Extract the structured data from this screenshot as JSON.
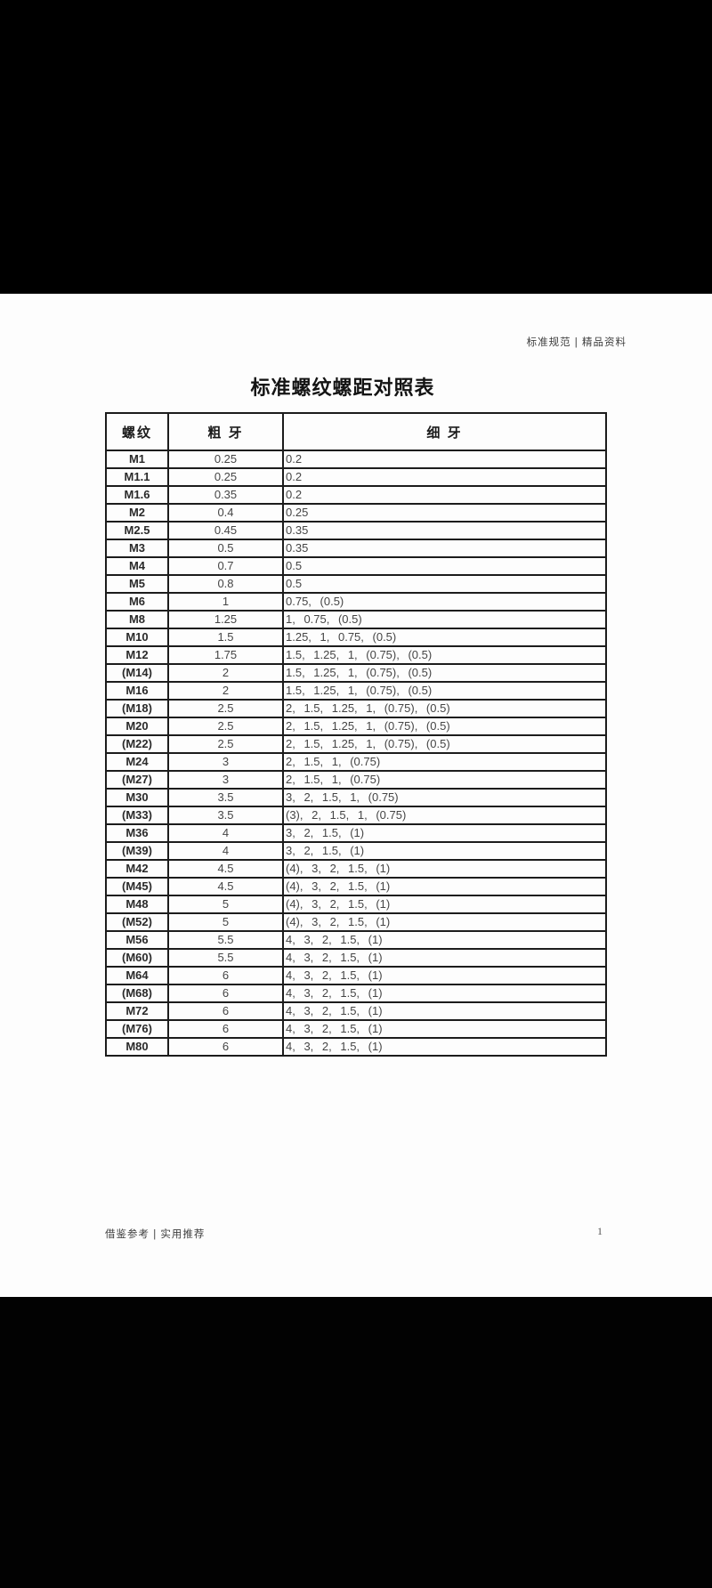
{
  "page": {
    "header_meta": "标准规范 | 精品资料",
    "title": "标准螺纹螺距对照表",
    "footer_meta": "借鉴参考 | 实用推荐",
    "page_number": "1"
  },
  "colors": {
    "background": "#000000",
    "paper": "#fdfdfd",
    "border": "#1c1c1c",
    "text": "#454545"
  },
  "table": {
    "columns": [
      "螺纹",
      "粗 牙",
      "细 牙"
    ],
    "rows": [
      [
        "M1",
        "0.25",
        "0.2"
      ],
      [
        "M1.1",
        "0.25",
        "0.2"
      ],
      [
        "M1.6",
        "0.35",
        "0.2"
      ],
      [
        "M2",
        "0.4",
        "0.25"
      ],
      [
        "M2.5",
        "0.45",
        "0.35"
      ],
      [
        "M3",
        "0.5",
        "0.35"
      ],
      [
        "M4",
        "0.7",
        "0.5"
      ],
      [
        "M5",
        "0.8",
        "0.5"
      ],
      [
        "M6",
        "1",
        "0.75, (0.5)"
      ],
      [
        "M8",
        "1.25",
        "1, 0.75, (0.5)"
      ],
      [
        "M10",
        "1.5",
        "1.25, 1, 0.75, (0.5)"
      ],
      [
        "M12",
        "1.75",
        "1.5, 1.25, 1, (0.75), (0.5)"
      ],
      [
        "(M14)",
        "2",
        "1.5, 1.25, 1, (0.75), (0.5)"
      ],
      [
        "M16",
        "2",
        "1.5, 1.25, 1, (0.75), (0.5)"
      ],
      [
        "(M18)",
        "2.5",
        "2, 1.5, 1.25, 1, (0.75), (0.5)"
      ],
      [
        "M20",
        "2.5",
        "2, 1.5, 1.25, 1, (0.75), (0.5)"
      ],
      [
        "(M22)",
        "2.5",
        "2, 1.5, 1.25, 1, (0.75), (0.5)"
      ],
      [
        "M24",
        "3",
        "2, 1.5, 1, (0.75)"
      ],
      [
        "(M27)",
        "3",
        "2, 1.5, 1, (0.75)"
      ],
      [
        "M30",
        "3.5",
        "3, 2, 1.5, 1, (0.75)"
      ],
      [
        "(M33)",
        "3.5",
        "(3), 2, 1.5, 1, (0.75)"
      ],
      [
        "M36",
        "4",
        "3, 2, 1.5, (1)"
      ],
      [
        "(M39)",
        "4",
        "3, 2, 1.5, (1)"
      ],
      [
        "M42",
        "4.5",
        "(4), 3, 2, 1.5, (1)"
      ],
      [
        "(M45)",
        "4.5",
        "(4), 3, 2, 1.5, (1)"
      ],
      [
        "M48",
        "5",
        "(4), 3, 2, 1.5, (1)"
      ],
      [
        "(M52)",
        "5",
        "(4), 3, 2, 1.5, (1)"
      ],
      [
        "M56",
        "5.5",
        "4, 3, 2, 1.5, (1)"
      ],
      [
        "(M60)",
        "5.5",
        "4, 3, 2, 1.5, (1)"
      ],
      [
        "M64",
        "6",
        "4, 3, 2, 1.5, (1)"
      ],
      [
        "(M68)",
        "6",
        "4, 3, 2, 1.5, (1)"
      ],
      [
        "M72",
        "6",
        "4, 3, 2, 1.5, (1)"
      ],
      [
        "(M76)",
        "6",
        "4, 3, 2, 1.5, (1)"
      ],
      [
        "M80",
        "6",
        "4, 3, 2, 1.5, (1)"
      ]
    ]
  }
}
